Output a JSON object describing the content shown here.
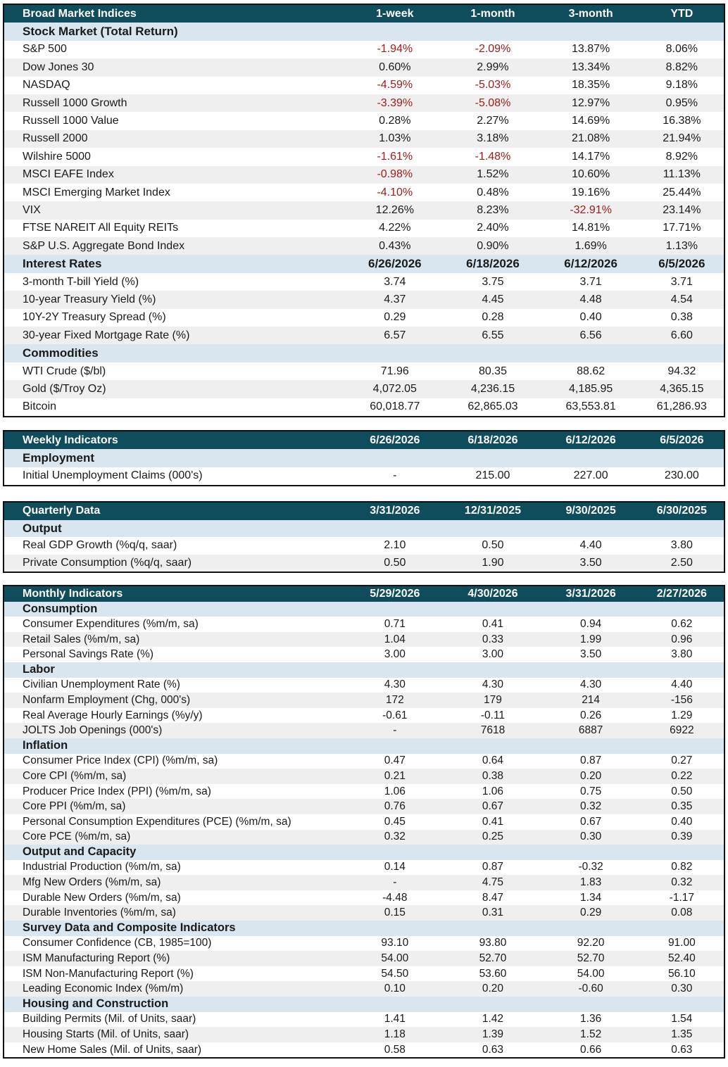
{
  "market": {
    "header": [
      "Broad Market Indices",
      "1-week",
      "1-month",
      "3-month",
      "YTD"
    ],
    "stock_section": "Stock Market (Total Return)",
    "stocks": [
      {
        "name": "S&P 500",
        "v": [
          "-1.94%",
          "-2.09%",
          "13.87%",
          "8.06%"
        ]
      },
      {
        "name": "Dow Jones 30",
        "v": [
          "0.60%",
          "2.99%",
          "13.34%",
          "8.82%"
        ]
      },
      {
        "name": "NASDAQ",
        "v": [
          "-4.59%",
          "-5.03%",
          "18.35%",
          "9.18%"
        ]
      },
      {
        "name": "Russell 1000 Growth",
        "v": [
          "-3.39%",
          "-5.08%",
          "12.97%",
          "0.95%"
        ]
      },
      {
        "name": "Russell 1000 Value",
        "v": [
          "0.28%",
          "2.27%",
          "14.69%",
          "16.38%"
        ]
      },
      {
        "name": "Russell 2000",
        "v": [
          "1.03%",
          "3.18%",
          "21.08%",
          "21.94%"
        ]
      },
      {
        "name": "Wilshire 5000",
        "v": [
          "-1.61%",
          "-1.48%",
          "14.17%",
          "8.92%"
        ]
      },
      {
        "name": "MSCI EAFE  Index",
        "v": [
          "-0.98%",
          "1.52%",
          "10.60%",
          "11.13%"
        ]
      },
      {
        "name": "MSCI Emerging Market Index",
        "v": [
          "-4.10%",
          "0.48%",
          "19.16%",
          "25.44%"
        ]
      },
      {
        "name": "VIX",
        "v": [
          "12.26%",
          "8.23%",
          "-32.91%",
          "23.14%"
        ]
      },
      {
        "name": "FTSE NAREIT All Equity REITs",
        "v": [
          "4.22%",
          "2.40%",
          "14.81%",
          "17.71%"
        ]
      },
      {
        "name": "S&P U.S. Aggregate Bond Index",
        "v": [
          "0.43%",
          "0.90%",
          "1.69%",
          "1.13%"
        ]
      }
    ],
    "rates_header": [
      "Interest Rates",
      "6/26/2026",
      "6/18/2026",
      "6/12/2026",
      "6/5/2026"
    ],
    "rates": [
      {
        "name": "3-month T-bill Yield (%)",
        "v": [
          "3.74",
          "3.75",
          "3.71",
          "3.71"
        ]
      },
      {
        "name": "10-year Treasury Yield (%)",
        "v": [
          "4.37",
          "4.45",
          "4.48",
          "4.54"
        ]
      },
      {
        "name": "10Y-2Y Treasury Spread (%)",
        "v": [
          "0.29",
          "0.28",
          "0.40",
          "0.38"
        ]
      },
      {
        "name": "30-year Fixed Mortgage Rate (%)",
        "v": [
          "6.57",
          "6.55",
          "6.56",
          "6.60"
        ]
      }
    ],
    "commodities_section": "Commodities",
    "commodities": [
      {
        "name": "WTI Crude ($/bl)",
        "v": [
          "71.96",
          "80.35",
          "88.62",
          "94.32"
        ]
      },
      {
        "name": "Gold ($/Troy Oz)",
        "v": [
          "4,072.05",
          "4,236.15",
          "4,185.95",
          "4,365.15"
        ]
      },
      {
        "name": "Bitcoin",
        "v": [
          "60,018.77",
          "62,865.03",
          "63,553.81",
          "61,286.93"
        ]
      }
    ]
  },
  "weekly": {
    "header": [
      "Weekly Indicators",
      "6/26/2026",
      "6/18/2026",
      "6/12/2026",
      "6/5/2026"
    ],
    "section": "Employment",
    "rows": [
      {
        "name": "Initial Unemployment Claims (000's)",
        "v": [
          "-",
          "215.00",
          "227.00",
          "230.00"
        ]
      }
    ]
  },
  "quarterly": {
    "header": [
      "Quarterly Data",
      "3/31/2026",
      "12/31/2025",
      "9/30/2025",
      "6/30/2025"
    ],
    "section": "Output",
    "rows": [
      {
        "name": "Real GDP Growth (%q/q, saar)",
        "v": [
          "2.10",
          "0.50",
          "4.40",
          "3.80"
        ]
      },
      {
        "name": "Private Consumption (%q/q, saar)",
        "v": [
          "0.50",
          "1.90",
          "3.50",
          "2.50"
        ]
      }
    ]
  },
  "monthly": {
    "header": [
      "Monthly Indicators",
      "5/29/2026",
      "4/30/2026",
      "3/31/2026",
      "2/27/2026"
    ],
    "sections": [
      {
        "title": "Consumption",
        "rows": [
          {
            "name": "Consumer Expenditures (%m/m, sa)",
            "v": [
              "0.71",
              "0.41",
              "0.94",
              "0.62"
            ]
          },
          {
            "name": "Retail Sales (%m/m, sa)",
            "v": [
              "1.04",
              "0.33",
              "1.99",
              "0.96"
            ]
          },
          {
            "name": "Personal Savings Rate (%)",
            "v": [
              "3.00",
              "3.00",
              "3.50",
              "3.80"
            ]
          }
        ]
      },
      {
        "title": "Labor",
        "rows": [
          {
            "name": "Civilian Unemployment Rate (%)",
            "v": [
              "4.30",
              "4.30",
              "4.30",
              "4.40"
            ]
          },
          {
            "name": "Nonfarm Employment (Chg, 000's)",
            "v": [
              "172",
              "179",
              "214",
              "-156"
            ]
          },
          {
            "name": "Real Average Hourly Earnings (%y/y)",
            "v": [
              "-0.61",
              "-0.11",
              "0.26",
              "1.29"
            ]
          },
          {
            "name": "JOLTS Job Openings (000's)",
            "v": [
              "-",
              "7618",
              "6887",
              "6922"
            ]
          }
        ]
      },
      {
        "title": "Inflation",
        "rows": [
          {
            "name": "Consumer Price Index (CPI) (%m/m, sa)",
            "v": [
              "0.47",
              "0.64",
              "0.87",
              "0.27"
            ]
          },
          {
            "name": "Core CPI (%m/m, sa)",
            "v": [
              "0.21",
              "0.38",
              "0.20",
              "0.22"
            ]
          },
          {
            "name": "Producer Price Index (PPI) (%m/m, sa)",
            "v": [
              "1.06",
              "1.06",
              "0.75",
              "0.50"
            ]
          },
          {
            "name": "Core PPI (%m/m, sa)",
            "v": [
              "0.76",
              "0.67",
              "0.32",
              "0.35"
            ]
          },
          {
            "name": "Personal Consumption Expenditures (PCE) (%m/m, sa)",
            "v": [
              "0.45",
              "0.41",
              "0.67",
              "0.40"
            ]
          },
          {
            "name": "Core PCE (%m/m, sa)",
            "v": [
              "0.32",
              "0.25",
              "0.30",
              "0.39"
            ]
          }
        ]
      },
      {
        "title": "Output and Capacity",
        "rows": [
          {
            "name": "Industrial Production (%m/m, sa)",
            "v": [
              "0.14",
              "0.87",
              "-0.32",
              "0.82"
            ]
          },
          {
            "name": "Mfg New Orders (%m/m, sa)",
            "v": [
              "-",
              "4.75",
              "1.83",
              "0.32"
            ]
          },
          {
            "name": "Durable New Orders (%m/m, sa)",
            "v": [
              "-4.48",
              "8.47",
              "1.34",
              "-1.17"
            ]
          },
          {
            "name": "Durable Inventories (%m/m, sa)",
            "v": [
              "0.15",
              "0.31",
              "0.29",
              "0.08"
            ]
          }
        ]
      },
      {
        "title": "Survey Data and Composite Indicators",
        "rows": [
          {
            "name": "Consumer Confidence (CB, 1985=100)",
            "v": [
              "93.10",
              "93.80",
              "92.20",
              "91.00"
            ]
          },
          {
            "name": "ISM Manufacturing Report (%)",
            "v": [
              "54.00",
              "52.70",
              "52.70",
              "52.40"
            ]
          },
          {
            "name": "ISM Non-Manufacturing Report (%)",
            "v": [
              "54.50",
              "53.60",
              "54.00",
              "56.10"
            ]
          },
          {
            "name": "Leading Economic Index (%m/m)",
            "v": [
              "0.10",
              "0.20",
              "-0.60",
              "0.30"
            ]
          }
        ]
      },
      {
        "title": "Housing and Construction",
        "rows": [
          {
            "name": "Building Permits (Mil. of Units, saar)",
            "v": [
              "1.41",
              "1.42",
              "1.36",
              "1.54"
            ]
          },
          {
            "name": "Housing Starts (Mil. of Units, saar)",
            "v": [
              "1.18",
              "1.39",
              "1.52",
              "1.35"
            ]
          },
          {
            "name": "New Home Sales (Mil. of Units, saar)",
            "v": [
              "0.58",
              "0.63",
              "0.66",
              "0.63"
            ]
          }
        ]
      }
    ]
  },
  "colors": {
    "header": "#0f4c5c",
    "section": "#d9e6ef",
    "alt_row": "#efefef",
    "negative": "#a01c1c"
  }
}
